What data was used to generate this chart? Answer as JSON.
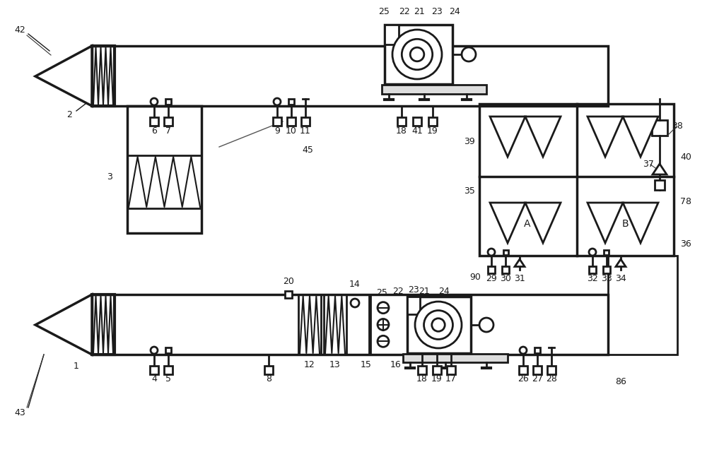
{
  "bg_color": "#ffffff",
  "line_color": "#1a1a1a",
  "lw": 2.0,
  "fig_width": 10.0,
  "fig_height": 6.4,
  "dpi": 100
}
